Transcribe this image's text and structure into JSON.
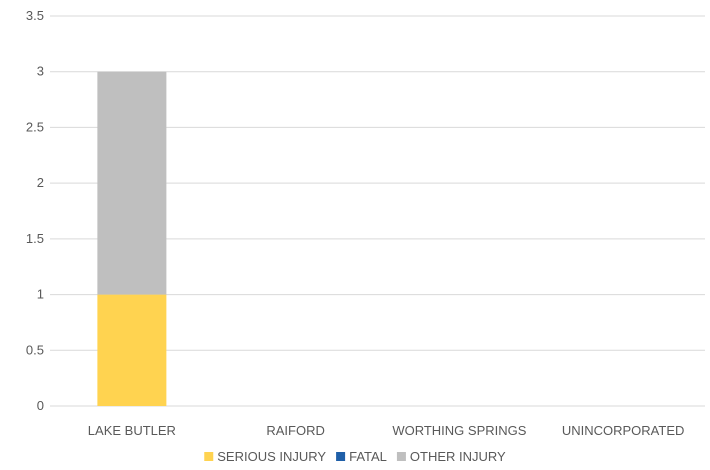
{
  "chart_data": {
    "type": "bar",
    "stacked": true,
    "categories": [
      "LAKE BUTLER",
      "RAIFORD",
      "WORTHING SPRINGS",
      "UNINCORPORATED"
    ],
    "series": [
      {
        "name": "SERIOUS INJURY",
        "color": "#ffd350",
        "values": [
          1,
          0,
          0,
          0
        ]
      },
      {
        "name": "FATAL",
        "color": "#1f5fa8",
        "values": [
          0,
          0,
          0,
          0
        ]
      },
      {
        "name": "OTHER INJURY",
        "color": "#bfbfbf",
        "values": [
          2,
          0,
          0,
          0
        ]
      }
    ],
    "yticks": [
      "0",
      "0.5",
      "1",
      "1.5",
      "2",
      "2.5",
      "3",
      "3.5"
    ],
    "ylim": [
      0,
      3.5
    ],
    "grid": true,
    "legend_position": "bottom"
  }
}
